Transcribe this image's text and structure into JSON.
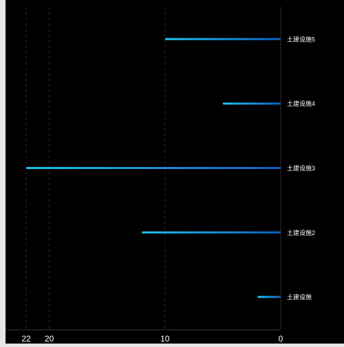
{
  "chart_data": {
    "type": "bar",
    "orientation": "horizontal",
    "x_axis_inverse": true,
    "category_axis_position": "right",
    "categories": [
      "土建设施",
      "土建设施2",
      "土建设施3",
      "土建设施4",
      "土建设施5"
    ],
    "values": [
      2,
      12,
      22,
      5,
      10
    ],
    "xlim": [
      0,
      22
    ],
    "x_ticks": [
      0,
      10,
      20,
      22
    ],
    "grid": true,
    "title": "",
    "xlabel": "",
    "ylabel": "",
    "colors": {
      "bar_start": "#0f5fc4",
      "bar_end": "#20c6f0",
      "grid": "#2b2b2b",
      "axis": "#3a3a3a",
      "tick_label": "#ffffff",
      "category_label": "#ffffff"
    }
  }
}
